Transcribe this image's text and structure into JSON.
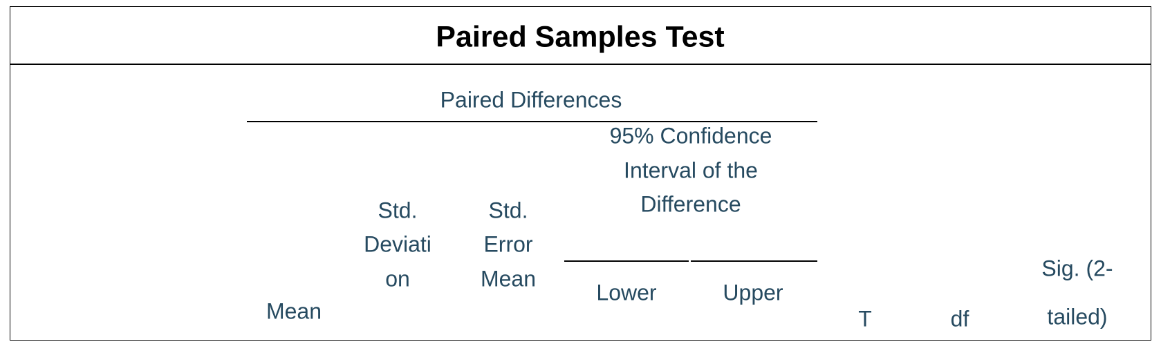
{
  "title": "Paired Samples Test",
  "header": {
    "group": "Paired Differences",
    "interval": [
      "95% Confidence",
      "Interval of the",
      "Difference"
    ],
    "columns": {
      "mean": [
        "Mean"
      ],
      "std_deviation": [
        "Std.",
        "Deviati",
        "on"
      ],
      "std_error_mean": [
        "Std.",
        "Error",
        "Mean"
      ],
      "lower": [
        "Lower"
      ],
      "upper": [
        "Upper"
      ],
      "t": [
        "T"
      ],
      "df": [
        "df"
      ],
      "sig": [
        "Sig. (2-",
        "tailed)"
      ]
    }
  }
}
